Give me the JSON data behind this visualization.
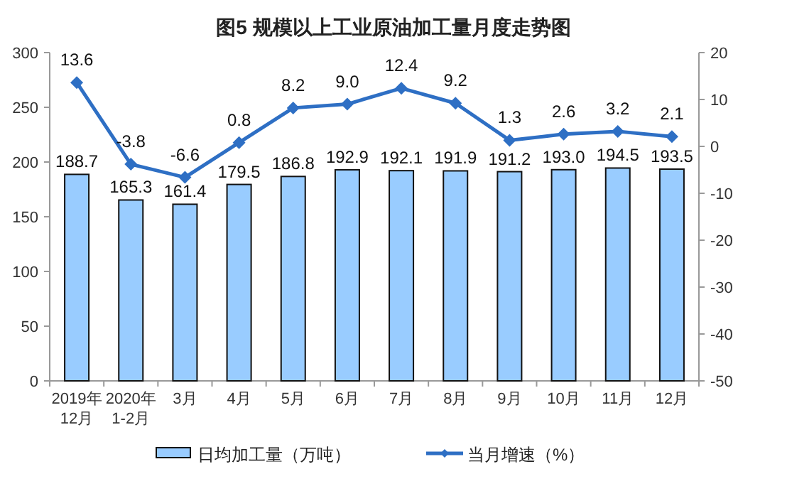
{
  "chart_data": {
    "type": "bar",
    "title": "图5  规模以上工业原油加工量月度走势图",
    "categories": [
      "2019年\n12月",
      "2020年\n1-2月",
      "3月",
      "4月",
      "5月",
      "6月",
      "7月",
      "8月",
      "9月",
      "10月",
      "11月",
      "12月"
    ],
    "series": [
      {
        "name": "日均加工量（万吨）",
        "color": "#99ccff",
        "values": [
          188.7,
          165.3,
          161.4,
          179.5,
          186.8,
          192.9,
          192.1,
          191.9,
          191.2,
          193.0,
          194.5,
          193.5
        ],
        "value_labels": [
          "188.7",
          "165.3",
          "161.4",
          "179.5",
          "186.8",
          "192.9",
          "192.1",
          "191.9",
          "191.2",
          "193.0",
          "194.5",
          "193.5"
        ]
      },
      {
        "name": "当月增速（%）",
        "type": "line",
        "axis": "y2",
        "color": "#2e6fc4",
        "marker": "diamond",
        "values": [
          13.6,
          -3.8,
          -6.6,
          0.8,
          8.2,
          9.0,
          12.4,
          9.2,
          1.3,
          2.6,
          3.2,
          2.1
        ],
        "value_labels": [
          "13.6",
          "-3.8",
          "-6.6",
          "0.8",
          "8.2",
          "9.0",
          "12.4",
          "9.2",
          "1.3",
          "2.6",
          "3.2",
          "2.1"
        ]
      }
    ],
    "ylim": [
      0,
      300
    ],
    "yticks": [
      0,
      50,
      100,
      150,
      200,
      250,
      300
    ],
    "y2lim": [
      -50,
      20
    ],
    "y2ticks": [
      -50,
      -40,
      -30,
      -20,
      -10,
      0,
      10,
      20
    ],
    "grid": false,
    "legend": "bottom"
  }
}
